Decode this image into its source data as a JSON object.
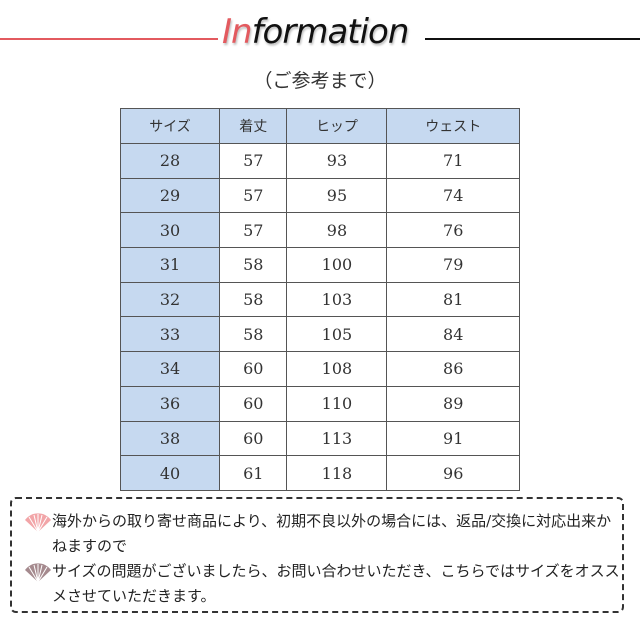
{
  "header": {
    "title_highlight": "In",
    "title_rest": "formation",
    "subtitle": "（ご参考まで）"
  },
  "colors": {
    "accent": "#e35a5f",
    "header_bg": "#c6d9f0"
  },
  "table": {
    "columns": [
      "サイズ",
      "着丈",
      "ヒップ",
      "ウェスト"
    ],
    "rows": [
      [
        "28",
        "57",
        "93",
        "71"
      ],
      [
        "29",
        "57",
        "95",
        "74"
      ],
      [
        "30",
        "57",
        "98",
        "76"
      ],
      [
        "31",
        "58",
        "100",
        "79"
      ],
      [
        "32",
        "58",
        "103",
        "81"
      ],
      [
        "33",
        "58",
        "105",
        "84"
      ],
      [
        "34",
        "60",
        "108",
        "86"
      ],
      [
        "36",
        "60",
        "110",
        "89"
      ],
      [
        "38",
        "60",
        "113",
        "91"
      ],
      [
        "40",
        "61",
        "118",
        "96"
      ]
    ]
  },
  "notes": [
    {
      "icon": "fan-icon-pink",
      "text": "海外からの取り寄せ商品により、初期不良以外の場合には、返品/交換に対応出来かねますので"
    },
    {
      "icon": "fan-icon-mauve",
      "text": "サイズの問題がございましたら、お問い合わせいただき、こちらではサイズをオススメさせていただきます。"
    }
  ]
}
